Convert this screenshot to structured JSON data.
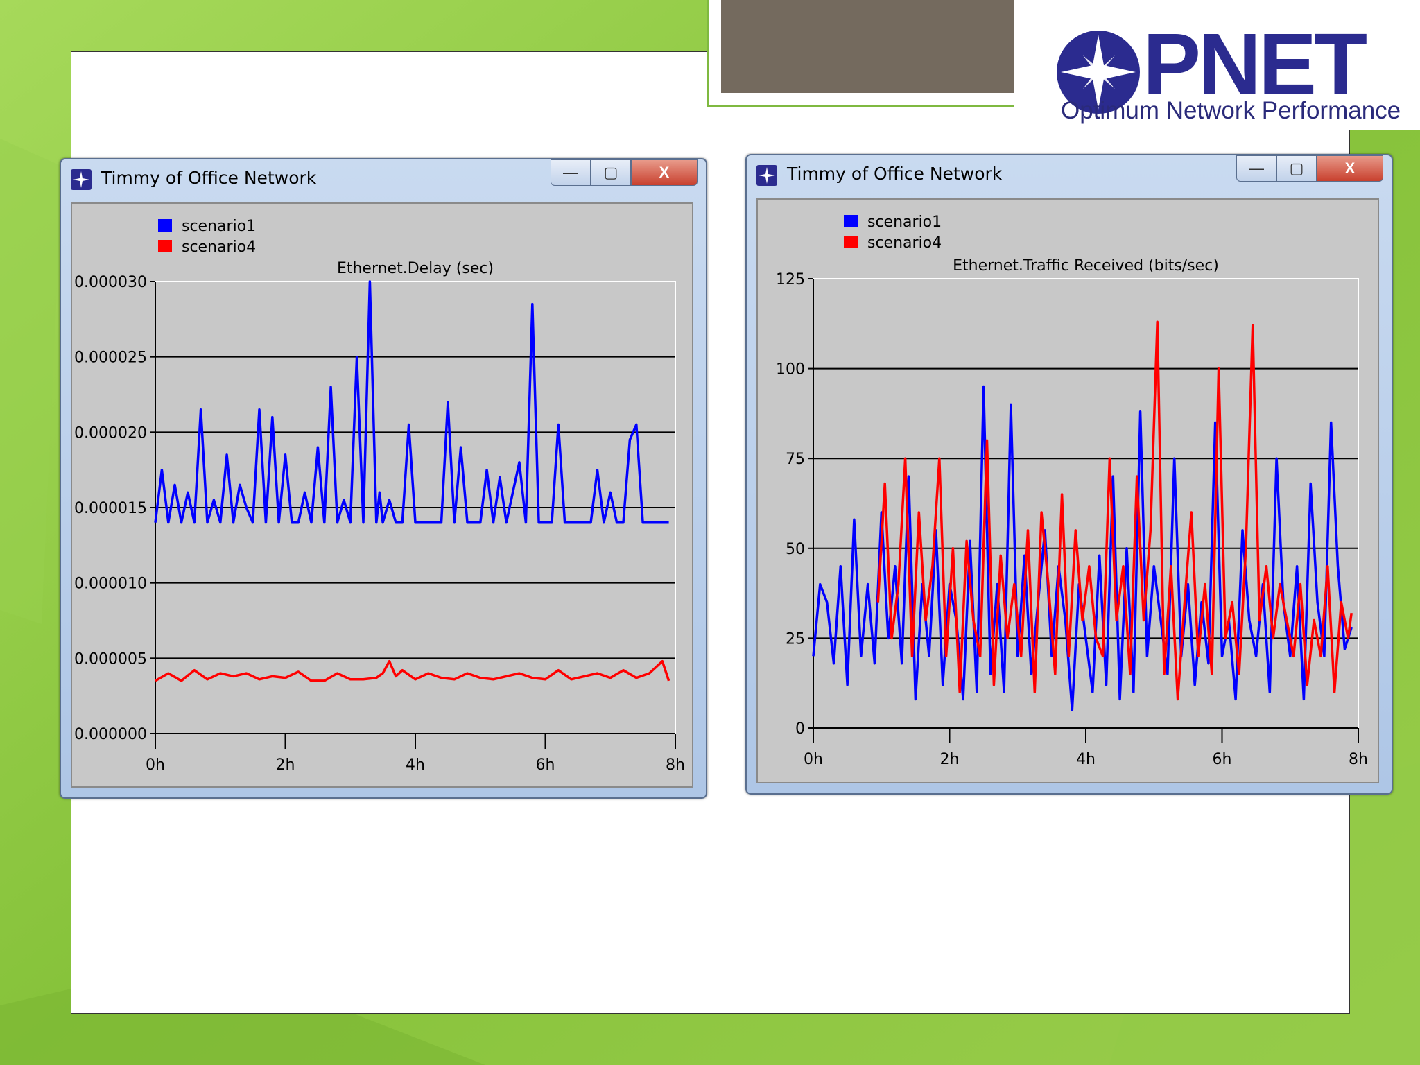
{
  "brand": {
    "logo_text": "OPNET",
    "tagline": "Optimum Network Performance",
    "logo_color": "#2b2b8f"
  },
  "windows": [
    {
      "title": "Timmy of Office Network",
      "controls": {
        "minimize": "—",
        "maximize": "▢",
        "close": "X"
      }
    },
    {
      "title": "Timmy of Office Network",
      "controls": {
        "minimize": "—",
        "maximize": "▢",
        "close": "X"
      }
    }
  ],
  "chart_data": [
    {
      "type": "line",
      "title": "Ethernet.Delay (sec)",
      "x_ticks": [
        "0h",
        "2h",
        "4h",
        "6h",
        "8h"
      ],
      "xlim": [
        0,
        8
      ],
      "ylim": [
        0,
        3e-05
      ],
      "y_ticks": [
        "0.000000",
        "0.000005",
        "0.000010",
        "0.000015",
        "0.000020",
        "0.000025",
        "0.000030"
      ],
      "grid": "horizontal",
      "legend": "top-left",
      "series": [
        {
          "name": "scenario1",
          "color": "#0000ff",
          "x": [
            0,
            0.1,
            0.2,
            0.3,
            0.4,
            0.5,
            0.6,
            0.7,
            0.8,
            0.9,
            1.0,
            1.1,
            1.2,
            1.3,
            1.4,
            1.5,
            1.6,
            1.7,
            1.8,
            1.9,
            2.0,
            2.1,
            2.2,
            2.3,
            2.4,
            2.5,
            2.6,
            2.7,
            2.8,
            2.9,
            3.0,
            3.1,
            3.2,
            3.3,
            3.4,
            3.45,
            3.5,
            3.6,
            3.7,
            3.8,
            3.9,
            4.0,
            4.1,
            4.2,
            4.3,
            4.4,
            4.5,
            4.6,
            4.7,
            4.8,
            4.9,
            5.0,
            5.1,
            5.2,
            5.3,
            5.4,
            5.5,
            5.6,
            5.7,
            5.8,
            5.9,
            6.0,
            6.1,
            6.2,
            6.3,
            6.4,
            6.5,
            6.6,
            6.7,
            6.8,
            6.9,
            7.0,
            7.1,
            7.2,
            7.3,
            7.4,
            7.5,
            7.6,
            7.7,
            7.8,
            7.9
          ],
          "values": [
            1.4e-05,
            1.75e-05,
            1.4e-05,
            1.65e-05,
            1.4e-05,
            1.6e-05,
            1.4e-05,
            2.15e-05,
            1.4e-05,
            1.55e-05,
            1.4e-05,
            1.85e-05,
            1.4e-05,
            1.65e-05,
            1.5e-05,
            1.4e-05,
            2.15e-05,
            1.4e-05,
            2.1e-05,
            1.4e-05,
            1.85e-05,
            1.4e-05,
            1.4e-05,
            1.6e-05,
            1.4e-05,
            1.9e-05,
            1.4e-05,
            2.3e-05,
            1.4e-05,
            1.55e-05,
            1.4e-05,
            2.5e-05,
            1.4e-05,
            3e-05,
            1.4e-05,
            1.6e-05,
            1.4e-05,
            1.55e-05,
            1.4e-05,
            1.4e-05,
            2.05e-05,
            1.4e-05,
            1.4e-05,
            1.4e-05,
            1.4e-05,
            1.4e-05,
            2.2e-05,
            1.4e-05,
            1.9e-05,
            1.4e-05,
            1.4e-05,
            1.4e-05,
            1.75e-05,
            1.4e-05,
            1.7e-05,
            1.4e-05,
            1.6e-05,
            1.8e-05,
            1.4e-05,
            2.85e-05,
            1.4e-05,
            1.4e-05,
            1.4e-05,
            2.05e-05,
            1.4e-05,
            1.4e-05,
            1.4e-05,
            1.4e-05,
            1.4e-05,
            1.75e-05,
            1.4e-05,
            1.6e-05,
            1.4e-05,
            1.4e-05,
            1.95e-05,
            2.05e-05,
            1.4e-05,
            1.4e-05,
            1.4e-05,
            1.4e-05,
            1.4e-05
          ]
        },
        {
          "name": "scenario4",
          "color": "#ff0000",
          "x": [
            0,
            0.2,
            0.4,
            0.6,
            0.8,
            1.0,
            1.2,
            1.4,
            1.6,
            1.8,
            2.0,
            2.2,
            2.4,
            2.6,
            2.8,
            3.0,
            3.2,
            3.4,
            3.5,
            3.6,
            3.7,
            3.8,
            4.0,
            4.2,
            4.4,
            4.6,
            4.8,
            5.0,
            5.2,
            5.4,
            5.6,
            5.8,
            6.0,
            6.2,
            6.4,
            6.6,
            6.8,
            7.0,
            7.2,
            7.4,
            7.6,
            7.8,
            7.9
          ],
          "values": [
            3.5e-06,
            4e-06,
            3.5e-06,
            4.2e-06,
            3.6e-06,
            4e-06,
            3.8e-06,
            4e-06,
            3.6e-06,
            3.8e-06,
            3.7e-06,
            4.1e-06,
            3.5e-06,
            3.5e-06,
            4e-06,
            3.6e-06,
            3.6e-06,
            3.7e-06,
            4e-06,
            4.8e-06,
            3.8e-06,
            4.2e-06,
            3.6e-06,
            4e-06,
            3.7e-06,
            3.6e-06,
            4e-06,
            3.7e-06,
            3.6e-06,
            3.8e-06,
            4e-06,
            3.7e-06,
            3.6e-06,
            4.2e-06,
            3.6e-06,
            3.8e-06,
            4e-06,
            3.7e-06,
            4.2e-06,
            3.7e-06,
            4e-06,
            4.8e-06,
            3.5e-06
          ]
        }
      ]
    },
    {
      "type": "line",
      "title": "Ethernet.Traffic Received (bits/sec)",
      "x_ticks": [
        "0h",
        "2h",
        "4h",
        "6h",
        "8h"
      ],
      "xlim": [
        0,
        8
      ],
      "ylim": [
        0,
        125
      ],
      "y_ticks": [
        "0",
        "25",
        "50",
        "75",
        "100",
        "125"
      ],
      "grid": "horizontal",
      "legend": "top-left",
      "series": [
        {
          "name": "scenario1",
          "color": "#0000ff",
          "x": [
            0,
            0.1,
            0.2,
            0.3,
            0.4,
            0.5,
            0.6,
            0.7,
            0.8,
            0.9,
            1.0,
            1.1,
            1.2,
            1.3,
            1.4,
            1.5,
            1.6,
            1.7,
            1.8,
            1.9,
            2.0,
            2.1,
            2.2,
            2.3,
            2.4,
            2.5,
            2.6,
            2.7,
            2.8,
            2.9,
            3.0,
            3.1,
            3.2,
            3.3,
            3.4,
            3.5,
            3.6,
            3.7,
            3.8,
            3.9,
            4.0,
            4.1,
            4.2,
            4.3,
            4.4,
            4.5,
            4.6,
            4.7,
            4.8,
            4.9,
            5.0,
            5.1,
            5.2,
            5.3,
            5.4,
            5.5,
            5.6,
            5.7,
            5.8,
            5.9,
            6.0,
            6.1,
            6.2,
            6.3,
            6.4,
            6.5,
            6.6,
            6.7,
            6.8,
            6.9,
            7.0,
            7.1,
            7.2,
            7.3,
            7.4,
            7.5,
            7.6,
            7.7,
            7.8,
            7.9
          ],
          "values": [
            20,
            40,
            35,
            18,
            45,
            12,
            58,
            20,
            40,
            18,
            60,
            25,
            45,
            18,
            70,
            8,
            40,
            20,
            55,
            12,
            40,
            30,
            8,
            52,
            10,
            95,
            15,
            40,
            10,
            90,
            20,
            48,
            15,
            35,
            55,
            20,
            45,
            30,
            5,
            40,
            25,
            10,
            48,
            12,
            70,
            8,
            50,
            10,
            88,
            20,
            45,
            30,
            15,
            75,
            20,
            40,
            12,
            35,
            18,
            85,
            20,
            30,
            8,
            55,
            30,
            20,
            40,
            10,
            75,
            35,
            20,
            45,
            8,
            68,
            35,
            20,
            85,
            45,
            22,
            28
          ]
        },
        {
          "name": "scenario4",
          "color": "#ff0000",
          "x": [
            0.95,
            1.05,
            1.15,
            1.25,
            1.35,
            1.45,
            1.55,
            1.65,
            1.75,
            1.85,
            1.95,
            2.05,
            2.15,
            2.25,
            2.35,
            2.45,
            2.55,
            2.65,
            2.75,
            2.85,
            2.95,
            3.05,
            3.15,
            3.25,
            3.35,
            3.45,
            3.55,
            3.65,
            3.75,
            3.85,
            3.95,
            4.05,
            4.15,
            4.25,
            4.35,
            4.45,
            4.55,
            4.65,
            4.75,
            4.85,
            4.95,
            5.05,
            5.15,
            5.25,
            5.35,
            5.45,
            5.55,
            5.65,
            5.75,
            5.85,
            5.95,
            6.05,
            6.15,
            6.25,
            6.35,
            6.45,
            6.55,
            6.65,
            6.75,
            6.85,
            6.95,
            7.05,
            7.15,
            7.25,
            7.35,
            7.45,
            7.55,
            7.65,
            7.75,
            7.85,
            7.9
          ],
          "values": [
            35,
            68,
            25,
            40,
            75,
            20,
            60,
            30,
            45,
            75,
            20,
            50,
            10,
            52,
            30,
            20,
            80,
            12,
            48,
            25,
            40,
            20,
            55,
            10,
            60,
            40,
            15,
            65,
            20,
            55,
            30,
            45,
            25,
            20,
            75,
            30,
            45,
            15,
            70,
            30,
            55,
            113,
            15,
            45,
            8,
            35,
            60,
            20,
            40,
            15,
            100,
            25,
            35,
            15,
            50,
            112,
            30,
            45,
            25,
            40,
            30,
            20,
            40,
            12,
            30,
            20,
            45,
            10,
            35,
            25,
            32
          ]
        }
      ]
    }
  ]
}
